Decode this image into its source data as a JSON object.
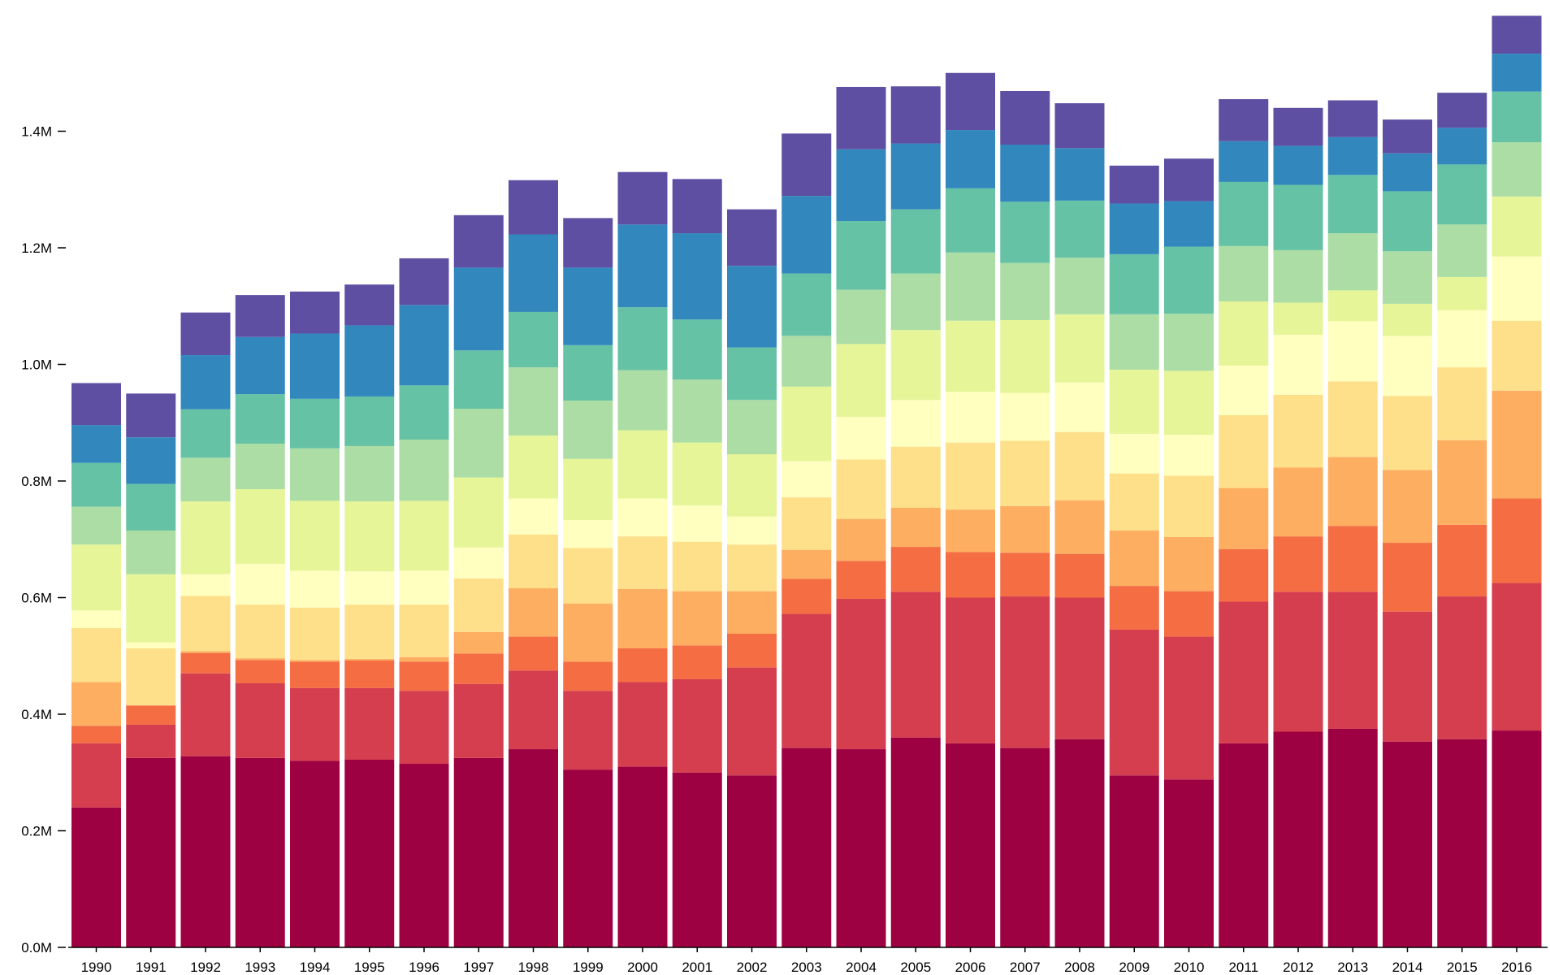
{
  "chart_data": {
    "type": "bar",
    "stacked": true,
    "title": "",
    "xlabel": "",
    "ylabel": "",
    "ylim": [
      0,
      1.6
    ],
    "y_unit_suffix": "M",
    "y_ticks": [
      0.0,
      0.2,
      0.4,
      0.6,
      0.8,
      1.0,
      1.2,
      1.4
    ],
    "y_tick_labels": [
      "0.0M",
      "0.2M",
      "0.4M",
      "0.6M",
      "0.8M",
      "1.0M",
      "1.2M",
      "1.4M"
    ],
    "grid": false,
    "legend": "none",
    "categories": [
      "1990",
      "1991",
      "1992",
      "1993",
      "1994",
      "1995",
      "1996",
      "1997",
      "1998",
      "1999",
      "2000",
      "2001",
      "2002",
      "2003",
      "2004",
      "2005",
      "2006",
      "2007",
      "2008",
      "2009",
      "2010",
      "2011",
      "2012",
      "2013",
      "2014",
      "2015",
      "2016"
    ],
    "colors": [
      "#9e0142",
      "#d53e4f",
      "#f46d43",
      "#fdae61",
      "#fee08b",
      "#ffffbf",
      "#e6f598",
      "#abdda4",
      "#66c2a5",
      "#3288bd",
      "#5e4fa2"
    ],
    "series": [
      {
        "values": [
          0.24,
          0.325,
          0.328,
          0.325,
          0.32,
          0.322,
          0.315,
          0.325,
          0.34,
          0.305,
          0.31,
          0.3,
          0.295,
          0.342,
          0.34,
          0.36,
          0.35,
          0.342,
          0.357,
          0.295,
          0.288,
          0.35,
          0.37,
          0.375,
          0.353,
          0.357,
          0.372
        ]
      },
      {
        "values": [
          0.11,
          0.057,
          0.142,
          0.128,
          0.125,
          0.123,
          0.125,
          0.127,
          0.135,
          0.135,
          0.145,
          0.16,
          0.185,
          0.23,
          0.258,
          0.25,
          0.25,
          0.26,
          0.243,
          0.25,
          0.245,
          0.243,
          0.24,
          0.235,
          0.223,
          0.245,
          0.253
        ]
      },
      {
        "values": [
          0.03,
          0.033,
          0.035,
          0.04,
          0.045,
          0.047,
          0.05,
          0.052,
          0.058,
          0.05,
          0.058,
          0.058,
          0.058,
          0.06,
          0.065,
          0.077,
          0.078,
          0.075,
          0.075,
          0.075,
          0.078,
          0.09,
          0.095,
          0.113,
          0.118,
          0.123,
          0.145
        ]
      },
      {
        "values": [
          0.075,
          0.0,
          0.003,
          0.003,
          0.003,
          0.003,
          0.008,
          0.037,
          0.083,
          0.1,
          0.102,
          0.093,
          0.073,
          0.05,
          0.072,
          0.067,
          0.073,
          0.08,
          0.092,
          0.095,
          0.093,
          0.105,
          0.118,
          0.118,
          0.125,
          0.145,
          0.185
        ]
      },
      {
        "values": [
          0.093,
          0.098,
          0.095,
          0.092,
          0.09,
          0.093,
          0.09,
          0.092,
          0.092,
          0.095,
          0.09,
          0.085,
          0.08,
          0.09,
          0.102,
          0.105,
          0.115,
          0.112,
          0.117,
          0.098,
          0.105,
          0.125,
          0.125,
          0.13,
          0.127,
          0.125,
          0.12
        ]
      },
      {
        "values": [
          0.03,
          0.01,
          0.037,
          0.07,
          0.063,
          0.057,
          0.058,
          0.053,
          0.062,
          0.048,
          0.065,
          0.062,
          0.048,
          0.062,
          0.073,
          0.08,
          0.087,
          0.082,
          0.085,
          0.068,
          0.07,
          0.085,
          0.103,
          0.103,
          0.103,
          0.098,
          0.11
        ]
      },
      {
        "values": [
          0.113,
          0.117,
          0.125,
          0.128,
          0.12,
          0.12,
          0.12,
          0.12,
          0.108,
          0.105,
          0.117,
          0.108,
          0.107,
          0.128,
          0.125,
          0.12,
          0.122,
          0.125,
          0.117,
          0.11,
          0.11,
          0.11,
          0.055,
          0.053,
          0.055,
          0.057,
          0.103
        ]
      },
      {
        "values": [
          0.065,
          0.075,
          0.075,
          0.078,
          0.09,
          0.095,
          0.105,
          0.118,
          0.117,
          0.1,
          0.103,
          0.108,
          0.093,
          0.087,
          0.093,
          0.097,
          0.117,
          0.098,
          0.097,
          0.095,
          0.098,
          0.095,
          0.09,
          0.098,
          0.09,
          0.09,
          0.093
        ]
      },
      {
        "values": [
          0.075,
          0.08,
          0.083,
          0.085,
          0.085,
          0.085,
          0.093,
          0.1,
          0.095,
          0.095,
          0.108,
          0.103,
          0.09,
          0.107,
          0.118,
          0.11,
          0.11,
          0.105,
          0.098,
          0.103,
          0.115,
          0.11,
          0.112,
          0.1,
          0.103,
          0.103,
          0.087
        ]
      },
      {
        "values": [
          0.065,
          0.08,
          0.093,
          0.098,
          0.112,
          0.122,
          0.138,
          0.142,
          0.133,
          0.133,
          0.142,
          0.148,
          0.14,
          0.133,
          0.123,
          0.113,
          0.1,
          0.098,
          0.09,
          0.087,
          0.078,
          0.07,
          0.067,
          0.065,
          0.065,
          0.063,
          0.065
        ]
      },
      {
        "values": [
          0.072,
          0.075,
          0.073,
          0.072,
          0.072,
          0.07,
          0.08,
          0.09,
          0.093,
          0.085,
          0.09,
          0.093,
          0.097,
          0.107,
          0.107,
          0.098,
          0.098,
          0.092,
          0.077,
          0.065,
          0.073,
          0.072,
          0.065,
          0.063,
          0.058,
          0.06,
          0.065
        ]
      }
    ]
  }
}
